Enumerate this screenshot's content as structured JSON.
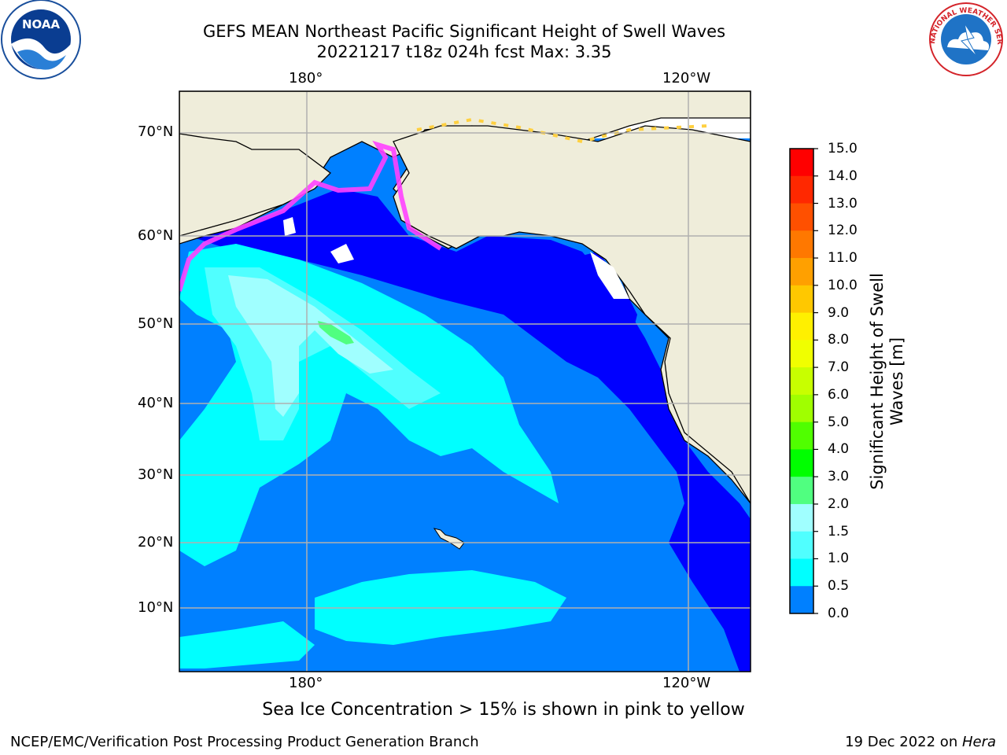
{
  "header": {
    "title_line1": "GEFS MEAN Northeast Pacific Significant Height of Swell Waves",
    "title_line2": "20221217 t18z 024h fcst   Max: 3.35"
  },
  "logos": {
    "left": "noaa-logo",
    "left_text": "NOAA",
    "right": "nws-logo",
    "right_text": "NATIONAL WEATHER SERVICE"
  },
  "map": {
    "lon_labels_top": [
      "180°",
      "120°W"
    ],
    "lon_labels_bottom": [
      "180°",
      "120°W"
    ],
    "lat_labels": [
      "70°N",
      "60°N",
      "50°N",
      "40°N",
      "30°N",
      "20°N",
      "10°N"
    ],
    "colors": {
      "land": "#efedda",
      "ocean_low": "#0000ff",
      "ocean_1": "#0080ff",
      "ocean_2": "#00ffff",
      "ocean_3": "#50ffff",
      "ocean_4": "#a0ffff",
      "ocean_5": "#50ff80",
      "sea_ice_pink": "#ff40ff",
      "sea_ice_yellow": "#ffd040",
      "grid": "#b0b0b0"
    }
  },
  "colorbar": {
    "label_line1": "Significant Height of Swell",
    "label_line2": "Waves [m]",
    "ticks": [
      "15.0",
      "14.0",
      "13.0",
      "12.0",
      "11.0",
      "10.0",
      "9.0",
      "8.0",
      "7.0",
      "6.0",
      "5.0",
      "4.0",
      "3.0",
      "2.0",
      "1.5",
      "1.0",
      "0.5",
      "0.0"
    ],
    "colors": [
      "#ff0000",
      "#ff2800",
      "#ff5000",
      "#ff7800",
      "#ffa000",
      "#ffc800",
      "#fff000",
      "#f0ff00",
      "#c8ff00",
      "#a0ff00",
      "#50ff00",
      "#00ff00",
      "#50ff80",
      "#a0ffff",
      "#50ffff",
      "#00ffff",
      "#0080ff",
      "#0000ff"
    ]
  },
  "footer": {
    "sea_ice_note": "Sea Ice Concentration > 15% is shown in pink to yellow",
    "credit_left": "NCEP/EMC/Verification Post Processing Product Generation Branch",
    "credit_right_prefix": "19 Dec 2022 on ",
    "credit_right_host": "Hera"
  }
}
